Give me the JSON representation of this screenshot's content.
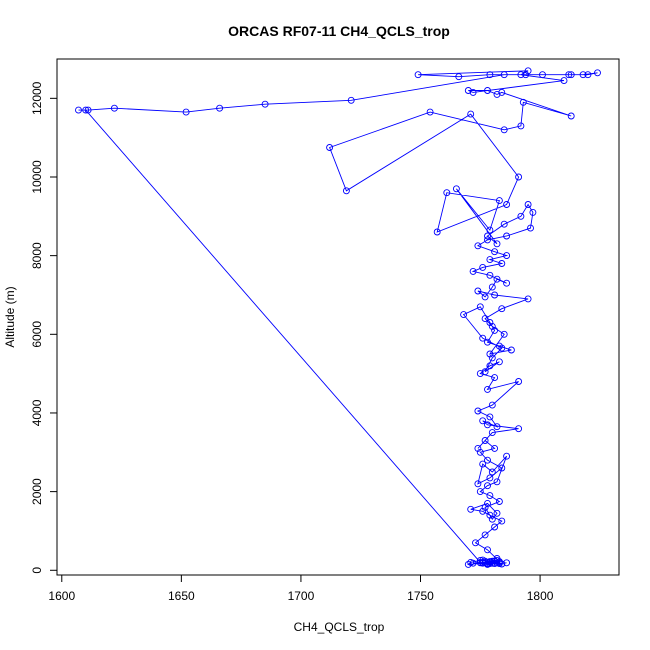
{
  "chart_data": {
    "type": "line",
    "title": "ORCAS RF07-11 CH4_QCLS_trop",
    "xlabel": "CH4_QCLS_trop",
    "ylabel": "Altitude (m)",
    "xlim": [
      1598,
      1833
    ],
    "ylim": [
      -120,
      13000
    ],
    "xticks": [
      1600,
      1650,
      1700,
      1750,
      1800
    ],
    "yticks": [
      0,
      2000,
      4000,
      6000,
      8000,
      10000,
      12000
    ],
    "grid": false,
    "legend": "none",
    "color": "#0000ff",
    "marker": "open-circle",
    "series": [
      {
        "x": [
          1782,
          1775,
          1771,
          1770,
          1776,
          1779,
          1784,
          1778,
          1777,
          1780,
          1782,
          1779,
          1776,
          1780,
          1783,
          1777,
          1781,
          1778,
          1775,
          1779,
          1782,
          1780,
          1776,
          1779,
          1783,
          1778,
          1773,
          1777,
          1781,
          1784,
          1779,
          1776,
          1771,
          1778,
          1782,
          1780,
          1777,
          1783,
          1779,
          1775,
          1778,
          1782,
          1786,
          1780,
          1776,
          1774,
          1779,
          1784,
          1778,
          1775,
          1781,
          1777,
          1774,
          1780,
          1791,
          1778,
          1776,
          1782,
          1779,
          1774,
          1780,
          1791,
          1778,
          1781,
          1775,
          1779,
          1783,
          1777,
          1780,
          1784,
          1776,
          1768,
          1775,
          1779,
          1781,
          1778,
          1783,
          1788,
          1779,
          1785,
          1780,
          1777,
          1784,
          1795,
          1781,
          1774,
          1777,
          1780,
          1782,
          1786,
          1779,
          1772,
          1776,
          1784,
          1779,
          1786,
          1781,
          1774,
          1778,
          1786,
          1796,
          1797,
          1795,
          1792,
          1785,
          1778,
          1782,
          1765,
          1779,
          1783,
          1761,
          1757,
          1786,
          1791,
          1771,
          1719,
          1712,
          1754,
          1785,
          1792,
          1793,
          1813,
          1784,
          1782,
          1778,
          1770,
          1772,
          1810,
          1792,
          1795,
          1749,
          1766,
          1779,
          1794,
          1801,
          1813,
          1820,
          1824,
          1818,
          1812,
          1785,
          1721,
          1685,
          1666,
          1652,
          1622,
          1611,
          1607,
          1610,
          1775,
          1772,
          1778,
          1783,
          1786
        ],
        "y": [
          300,
          250,
          200,
          150,
          180,
          220,
          160,
          170,
          200,
          230,
          190,
          210,
          260,
          180,
          200,
          230,
          170,
          150,
          190,
          210,
          250,
          180,
          200,
          170,
          220,
          520,
          700,
          900,
          1100,
          1250,
          1400,
          1500,
          1550,
          1700,
          1450,
          1300,
          1600,
          1750,
          1900,
          2000,
          2150,
          2250,
          2900,
          2500,
          2700,
          2200,
          2350,
          2600,
          2800,
          3000,
          3100,
          3300,
          3100,
          3500,
          3600,
          3700,
          3800,
          3650,
          3900,
          4050,
          4200,
          4800,
          4600,
          4900,
          5000,
          5200,
          5300,
          5050,
          5400,
          5650,
          5900,
          6500,
          6700,
          6300,
          6100,
          5800,
          5700,
          5600,
          5500,
          6000,
          6200,
          6400,
          6650,
          6900,
          7000,
          7100,
          6950,
          7200,
          7400,
          7300,
          7500,
          7600,
          7700,
          7800,
          7900,
          8000,
          8100,
          8250,
          8400,
          8500,
          8700,
          9100,
          9300,
          9000,
          8800,
          8500,
          8300,
          9700,
          8650,
          9400,
          9600,
          8600,
          9300,
          10000,
          11600,
          9650,
          10750,
          11650,
          11200,
          11300,
          11900,
          11550,
          12150,
          12100,
          12200,
          12200,
          12150,
          12450,
          12600,
          12700,
          12600,
          12550,
          12600,
          12600,
          12600,
          12600,
          12600,
          12650,
          12600,
          12600,
          12600,
          11950,
          11850,
          11750,
          11650,
          11750,
          11700,
          11700,
          11700,
          200,
          180,
          160,
          170,
          190
        ]
      }
    ]
  }
}
